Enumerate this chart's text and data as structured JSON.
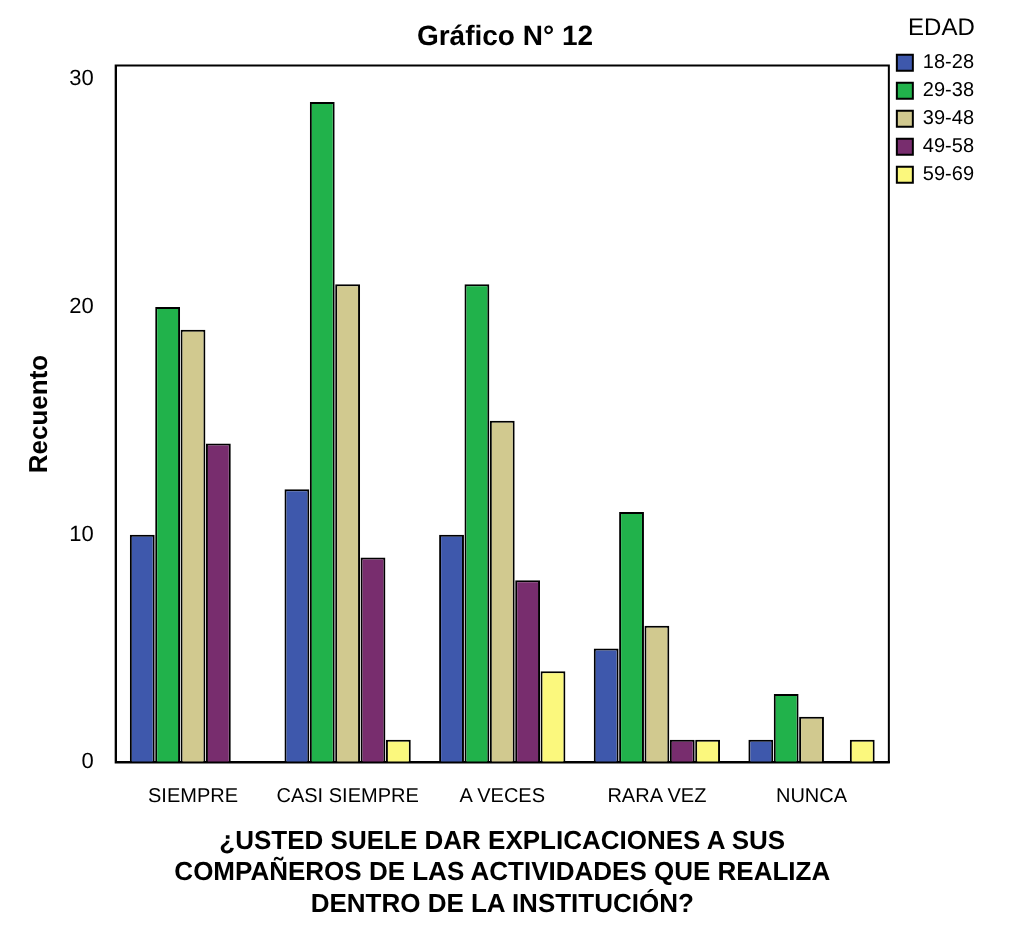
{
  "chart_data": {
    "type": "bar",
    "title": "Gráfico N° 12",
    "xlabel": "¿USTED SUELE DAR EXPLICACIONES A SUS\nCOMPAÑEROS DE LAS ACTIVIDADES QUE REALIZA\nDENTRO DE LA INSTITUCIÓN?",
    "ylabel": "Recuento",
    "legend_title": "EDAD",
    "legend": "top right",
    "grid": false,
    "categories": [
      "SIEMPRE",
      "CASI SIEMPRE",
      "A VECES",
      "RARA VEZ",
      "NUNCA"
    ],
    "series": [
      {
        "name": "18-28",
        "color": "#3e58ac",
        "values": [
          10,
          12,
          10,
          5,
          1
        ]
      },
      {
        "name": "29-38",
        "color": "#21b24b",
        "values": [
          20,
          29,
          21,
          11,
          3
        ]
      },
      {
        "name": "39-48",
        "color": "#d1c98f",
        "values": [
          19,
          21,
          15,
          6,
          2
        ]
      },
      {
        "name": "49-58",
        "color": "#782d6e",
        "values": [
          14,
          9,
          8,
          1,
          null
        ]
      },
      {
        "name": "59-69",
        "color": "#fbf87d",
        "values": [
          null,
          1,
          4,
          1,
          1
        ]
      }
    ],
    "ylim": [
      0,
      30.6
    ],
    "yticks": [
      0,
      10,
      20,
      30
    ]
  }
}
